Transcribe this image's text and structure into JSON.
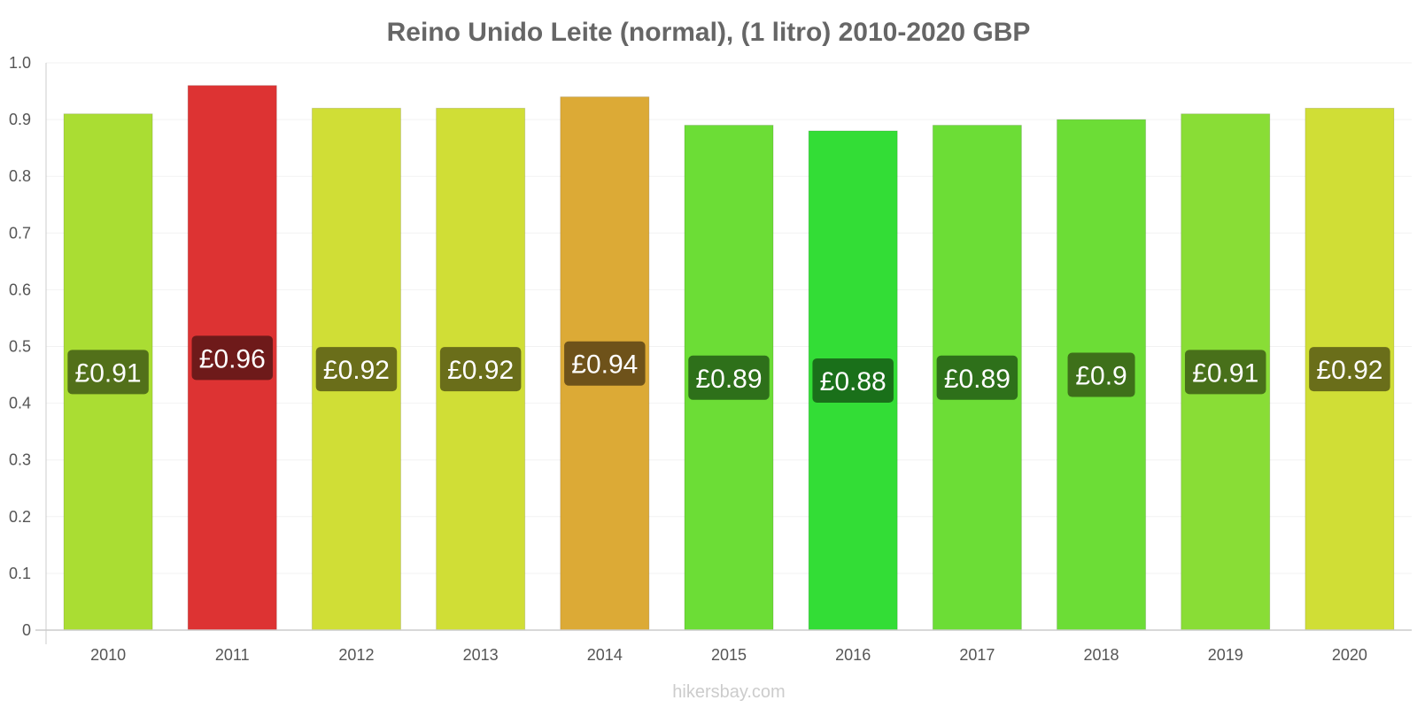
{
  "chart_data": {
    "type": "bar",
    "title": "Reino Unido Leite (normal), (1 litro) 2010-2020 GBP",
    "categories": [
      "2010",
      "2011",
      "2012",
      "2013",
      "2014",
      "2015",
      "2016",
      "2017",
      "2018",
      "2019",
      "2020"
    ],
    "values": [
      0.91,
      0.96,
      0.92,
      0.92,
      0.94,
      0.89,
      0.88,
      0.89,
      0.9,
      0.91,
      0.92
    ],
    "data_labels": [
      "£0.91",
      "£0.96",
      "£0.92",
      "£0.92",
      "£0.94",
      "£0.89",
      "£0.88",
      "£0.89",
      "£0.9",
      "£0.91",
      "£0.92"
    ],
    "bar_colors": [
      "#aadd33",
      "#dd3333",
      "#d0de36",
      "#d0de36",
      "#dcaa36",
      "#6cdd36",
      "#33dd36",
      "#6cdd36",
      "#6cdd36",
      "#89dd36",
      "#d0de36"
    ],
    "label_bg_colors": [
      "#52701a",
      "#6e1a1a",
      "#6a6e1a",
      "#6a6e1a",
      "#6e521a",
      "#2e701a",
      "#1a701a",
      "#2e701a",
      "#3e701a",
      "#48701a",
      "#6a6e1a"
    ],
    "y_ticks": [
      "0",
      "0.1",
      "0.2",
      "0.3",
      "0.4",
      "0.5",
      "0.6",
      "0.7",
      "0.8",
      "0.9",
      "1.0"
    ],
    "ylim": [
      0,
      1.0
    ],
    "grid": true,
    "legend": "none",
    "xlabel": "",
    "ylabel": ""
  },
  "watermark": "hikersbay.com"
}
